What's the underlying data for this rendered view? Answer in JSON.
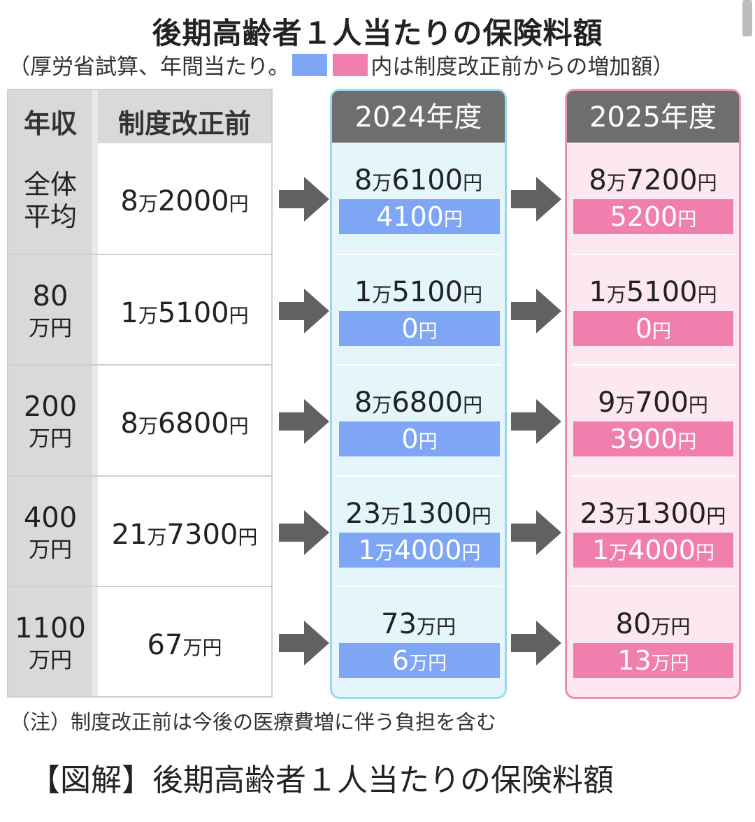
{
  "title": "後期高齢者１人当たりの保険料額",
  "subtitle": {
    "prefix": "（厚労省試算、年間当たり。",
    "suffix": "内は制度改正前からの増加額）"
  },
  "colors": {
    "blue": "#7ea6f4",
    "pink": "#f17fae",
    "header_gray": "#6e6e6e",
    "light_blue": "#e4f6fc",
    "light_pink": "#fde8f1"
  },
  "table": {
    "headers": {
      "income": "年収",
      "base": "制度改正前",
      "y2024": "2024年度",
      "y2025": "2025年度"
    },
    "rows": [
      {
        "income": [
          "全体",
          "平均"
        ],
        "base": [
          "8",
          "万",
          "2000",
          "円"
        ],
        "v2024": [
          "8",
          "万",
          "6100",
          "円"
        ],
        "d2024": [
          "",
          "",
          "4100",
          "円"
        ],
        "v2025": [
          "8",
          "万",
          "7200",
          "円"
        ],
        "d2025": [
          "",
          "",
          "5200",
          "円"
        ]
      },
      {
        "income": [
          "80",
          "万円"
        ],
        "base": [
          "1",
          "万",
          "5100",
          "円"
        ],
        "v2024": [
          "1",
          "万",
          "5100",
          "円"
        ],
        "d2024": [
          "",
          "",
          "0",
          "円"
        ],
        "v2025": [
          "1",
          "万",
          "5100",
          "円"
        ],
        "d2025": [
          "",
          "",
          "0",
          "円"
        ]
      },
      {
        "income": [
          "200",
          "万円"
        ],
        "base": [
          "8",
          "万",
          "6800",
          "円"
        ],
        "v2024": [
          "8",
          "万",
          "6800",
          "円"
        ],
        "d2024": [
          "",
          "",
          "0",
          "円"
        ],
        "v2025": [
          "9",
          "万",
          "700",
          "円"
        ],
        "d2025": [
          "",
          "",
          "3900",
          "円"
        ]
      },
      {
        "income": [
          "400",
          "万円"
        ],
        "base": [
          "21",
          "万",
          "7300",
          "円"
        ],
        "v2024": [
          "23",
          "万",
          "1300",
          "円"
        ],
        "d2024": [
          "1",
          "万",
          "4000",
          "円"
        ],
        "v2025": [
          "23",
          "万",
          "1300",
          "円"
        ],
        "d2025": [
          "1",
          "万",
          "4000",
          "円"
        ]
      },
      {
        "income": [
          "1100",
          "万円"
        ],
        "base": [
          "67",
          "万円",
          "",
          ""
        ],
        "v2024": [
          "73",
          "万円",
          "",
          ""
        ],
        "d2024": [
          "6",
          "万円",
          "",
          ""
        ],
        "v2025": [
          "80",
          "万円",
          "",
          ""
        ],
        "d2025": [
          "13",
          "万円",
          "",
          ""
        ]
      }
    ]
  },
  "note": "（注）制度改正前は今後の医療費増に伴う負担を含む",
  "caption": "【図解】後期高齢者１人当たりの保険料額",
  "chart_data": {
    "type": "table",
    "title": "後期高齢者１人当たりの保険料額",
    "subtitle": "（厚労省試算、年間当たり。内は制度改正前からの増加額）",
    "columns": [
      "年収",
      "制度改正前",
      "2024年度",
      "2024年度 増加額",
      "2025年度",
      "2025年度 増加額"
    ],
    "unit": "円",
    "rows": [
      [
        "全体平均",
        82000,
        86100,
        4100,
        87200,
        5200
      ],
      [
        "80万円",
        15100,
        15100,
        0,
        15100,
        0
      ],
      [
        "200万円",
        86800,
        86800,
        0,
        90700,
        3900
      ],
      [
        "400万円",
        217300,
        231300,
        14000,
        231300,
        14000
      ],
      [
        "1100万円",
        670000,
        730000,
        60000,
        800000,
        130000
      ]
    ]
  }
}
